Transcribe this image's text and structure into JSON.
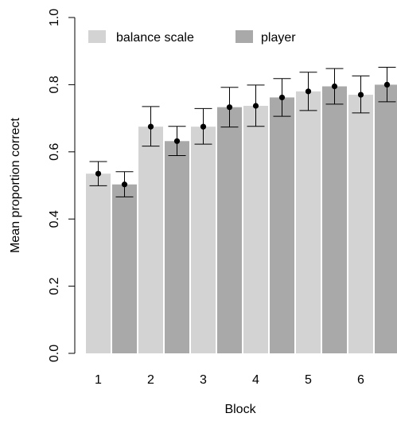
{
  "chart_data": {
    "type": "bar",
    "title": "",
    "xlabel": "Block",
    "ylabel": "Mean proportion correct",
    "categories": [
      "1",
      "2",
      "3",
      "4",
      "5",
      "6"
    ],
    "ylim": [
      0,
      1.0
    ],
    "yticks": [
      "0.0",
      "0.2",
      "0.4",
      "0.6",
      "0.8",
      "1.0"
    ],
    "legend_position": "top-left",
    "series": [
      {
        "name": "balance scale",
        "color": "#d3d3d3",
        "values": [
          0.535,
          0.675,
          0.675,
          0.737,
          0.78,
          0.77
        ],
        "err_low": [
          0.499,
          0.617,
          0.623,
          0.676,
          0.723,
          0.716
        ],
        "err_high": [
          0.571,
          0.735,
          0.729,
          0.799,
          0.837,
          0.826
        ]
      },
      {
        "name": "player",
        "color": "#a9a9a9",
        "values": [
          0.503,
          0.632,
          0.733,
          0.762,
          0.795,
          0.8
        ],
        "err_low": [
          0.466,
          0.589,
          0.674,
          0.706,
          0.742,
          0.749
        ],
        "err_high": [
          0.541,
          0.676,
          0.792,
          0.818,
          0.848,
          0.852
        ]
      }
    ]
  }
}
